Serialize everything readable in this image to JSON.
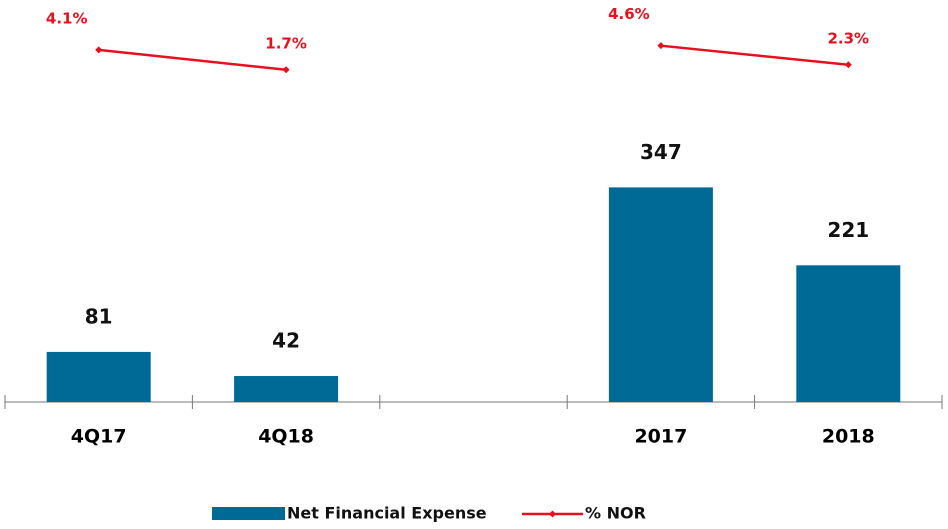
{
  "chart_data": {
    "type": "bar_line",
    "categories": [
      "4Q17",
      "4Q18",
      null,
      "2017",
      "2018"
    ],
    "series": [
      {
        "name": "Net Financial Expense",
        "type": "bar",
        "color": "#006a96",
        "values": [
          81,
          42,
          null,
          347,
          221
        ]
      },
      {
        "name": "% NOR",
        "type": "line",
        "axis": "y2",
        "color": "#e8101e",
        "values": [
          4.1,
          1.7,
          null,
          4.6,
          2.3
        ],
        "value_labels": [
          "4.1%",
          "1.7%",
          null,
          "4.6%",
          "2.3%"
        ]
      }
    ],
    "ylim": [
      0,
      650
    ],
    "y2lim": [
      -38.3,
      10.1
    ],
    "legend": "bottom"
  }
}
